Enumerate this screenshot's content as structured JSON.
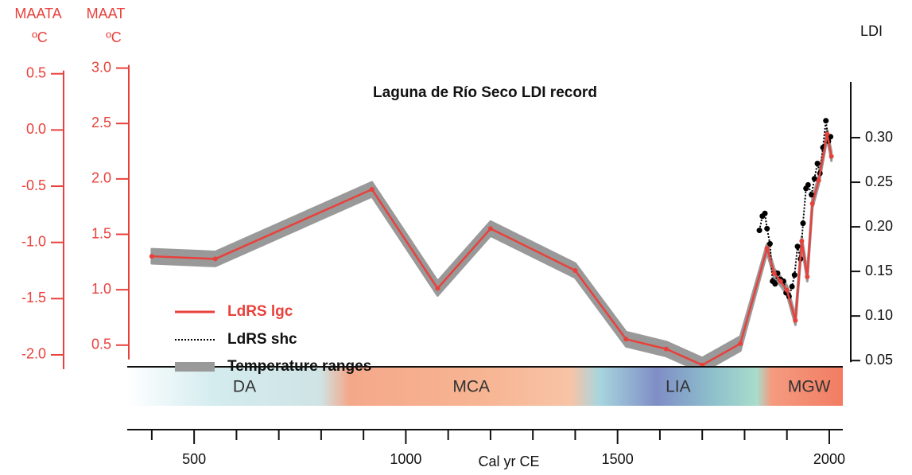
{
  "chart_data": {
    "type": "line",
    "title": "Laguna de Río Seco LDI record",
    "xlabel": "Cal yr CE",
    "ylabel": "LDI",
    "y2label": [
      "MAAT",
      "ºC"
    ],
    "y3label": [
      "MAATA",
      "ºC"
    ],
    "xlim": [
      342,
      2032
    ],
    "xticks": [
      500,
      1000,
      1500,
      2000
    ],
    "xminorticks": [
      400,
      600,
      700,
      800,
      900,
      1100,
      1200,
      1300,
      1400,
      1600,
      1700,
      1800,
      1900
    ],
    "ylim": [
      0.035,
      0.383
    ],
    "yticks": [
      0.05,
      {
        "value": 0.1,
        "label": "0.10"
      },
      0.15,
      {
        "value": 0.2,
        "label": "0.20"
      },
      0.25,
      {
        "value": 0.3,
        "label": "0.30"
      }
    ],
    "y2lim": [
      0.24,
      3.04
    ],
    "y2ticks": [
      0.5,
      {
        "value": 1,
        "label": "1.0"
      },
      1.5,
      {
        "value": 2,
        "label": "2.0"
      },
      2.5,
      {
        "value": 3,
        "label": "3.0"
      }
    ],
    "y3lim": [
      -2.17,
      0.59
    ],
    "y3ticks": [
      0.5,
      {
        "value": 0,
        "label": "0.0"
      },
      -0.5,
      {
        "value": -1,
        "label": "-1.0"
      },
      -1.5,
      {
        "value": -2,
        "label": "-2.0"
      }
    ],
    "series": [
      {
        "name": "LdRS lgc",
        "color": "#e8413c",
        "x": [
          400,
          550,
          920,
          1075,
          1200,
          1400,
          1520,
          1615,
          1700,
          1790,
          1853,
          1870,
          1885,
          1900,
          1920,
          1935,
          1948,
          1960,
          1975,
          1995,
          2005
        ],
        "values": [
          0.167,
          0.164,
          0.242,
          0.131,
          0.198,
          0.151,
          0.074,
          0.063,
          0.045,
          0.069,
          0.176,
          0.148,
          0.139,
          0.129,
          0.095,
          0.184,
          0.144,
          0.226,
          0.252,
          0.304,
          0.279
        ]
      },
      {
        "name": "LdRS shc",
        "color": "#000000",
        "x": [
          1835,
          1842,
          1848,
          1853,
          1860,
          1866,
          1872,
          1878,
          1885,
          1892,
          1898,
          1905,
          1912,
          1918,
          1925,
          1932,
          1938,
          1945,
          1950,
          1958,
          1965,
          1972,
          1978,
          1985,
          1992,
          1998,
          2003
        ],
        "values": [
          0.196,
          0.212,
          0.215,
          0.198,
          0.181,
          0.139,
          0.136,
          0.148,
          0.141,
          0.139,
          0.126,
          0.122,
          0.133,
          0.146,
          0.178,
          0.164,
          0.204,
          0.243,
          0.247,
          0.236,
          0.254,
          0.271,
          0.26,
          0.289,
          0.319,
          0.296,
          0.301
        ]
      },
      {
        "name": "Temperature ranges",
        "color": "#999999",
        "x": [
          400,
          550,
          920,
          1075,
          1200,
          1400,
          1520,
          1615,
          1700,
          1790,
          1853,
          1870,
          1885,
          1900,
          1920,
          1935,
          1948,
          1960,
          1975,
          1995,
          2005
        ],
        "upper": [
          0.175,
          0.172,
          0.25,
          0.139,
          0.206,
          0.159,
          0.082,
          0.071,
          0.053,
          0.077,
          0.181,
          0.153,
          0.144,
          0.134,
          0.1,
          0.189,
          0.149,
          0.231,
          0.257,
          0.309,
          0.284
        ],
        "lower": [
          0.159,
          0.156,
          0.234,
          0.123,
          0.19,
          0.143,
          0.066,
          0.055,
          0.037,
          0.061,
          0.171,
          0.143,
          0.134,
          0.124,
          0.09,
          0.179,
          0.139,
          0.221,
          0.247,
          0.299,
          0.274
        ]
      }
    ],
    "periods": [
      {
        "label": "DA",
        "start": 342,
        "end": 896
      },
      {
        "label": "MCA",
        "start": 896,
        "end": 1413
      },
      {
        "label": "LIA",
        "start": 1413,
        "end": 1873
      },
      {
        "label": "MGW",
        "start": 1873,
        "end": 2032
      }
    ]
  }
}
